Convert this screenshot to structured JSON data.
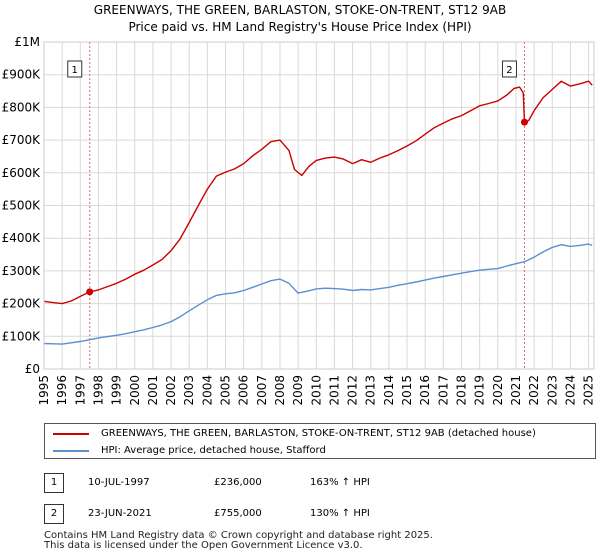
{
  "title_line1": "GREENWAYS, THE GREEN, BARLASTON, STOKE-ON-TRENT, ST12 9AB",
  "title_line2": "Price paid vs. HM Land Registry's House Price Index (HPI)",
  "colors": {
    "property": "#cc0000",
    "hpi": "#5b8fd0",
    "marker_line": "#e06a6a",
    "grid": "#d9d9d9"
  },
  "legend": {
    "property_label": "GREENWAYS, THE GREEN, BARLASTON, STOKE-ON-TRENT, ST12 9AB (detached house)",
    "hpi_label": "HPI: Average price, detached house, Stafford"
  },
  "annotations": [
    {
      "id": "1",
      "date": "10-JUL-1997",
      "price": "£236,000",
      "hpi_change": "163% ↑ HPI"
    },
    {
      "id": "2",
      "date": "23-JUN-2021",
      "price": "£755,000",
      "hpi_change": "130% ↑ HPI"
    }
  ],
  "footer": {
    "line1": "Contains HM Land Registry data © Crown copyright and database right 2025.",
    "line2": "This data is licensed under the Open Government Licence v3.0."
  },
  "chart_data": {
    "type": "line",
    "title": "GREENWAYS, THE GREEN, BARLASTON, STOKE-ON-TRENT, ST12 9AB — Price paid vs. HM Land Registry's House Price Index (HPI)",
    "xlabel": "",
    "ylabel": "",
    "xlim": [
      1995,
      2025.3
    ],
    "ylim": [
      0,
      1000000
    ],
    "y_ticks": [
      {
        "value": 0,
        "label": "£0"
      },
      {
        "value": 100000,
        "label": "£100K"
      },
      {
        "value": 200000,
        "label": "£200K"
      },
      {
        "value": 300000,
        "label": "£300K"
      },
      {
        "value": 400000,
        "label": "£400K"
      },
      {
        "value": 500000,
        "label": "£500K"
      },
      {
        "value": 600000,
        "label": "£600K"
      },
      {
        "value": 700000,
        "label": "£700K"
      },
      {
        "value": 800000,
        "label": "£800K"
      },
      {
        "value": 900000,
        "label": "£900K"
      },
      {
        "value": 1000000,
        "label": "£1M"
      }
    ],
    "x_ticks": [
      "1995",
      "1996",
      "1997",
      "1998",
      "1999",
      "2000",
      "2001",
      "2002",
      "2003",
      "2004",
      "2005",
      "2006",
      "2007",
      "2008",
      "2009",
      "2010",
      "2011",
      "2012",
      "2013",
      "2014",
      "2015",
      "2016",
      "2017",
      "2018",
      "2019",
      "2020",
      "2021",
      "2022",
      "2023",
      "2024",
      "2025"
    ],
    "grid": true,
    "series": [
      {
        "name": "GREENWAYS, THE GREEN, BARLASTON, STOKE-ON-TRENT, ST12 9AB (detached house)",
        "points": [
          [
            1995.0,
            207000
          ],
          [
            1995.5,
            203000
          ],
          [
            1996.0,
            200000
          ],
          [
            1996.5,
            208000
          ],
          [
            1997.0,
            222000
          ],
          [
            1997.52,
            236000
          ],
          [
            1998.0,
            242000
          ],
          [
            1998.5,
            252000
          ],
          [
            1999.0,
            262000
          ],
          [
            1999.5,
            275000
          ],
          [
            2000.0,
            290000
          ],
          [
            2000.5,
            302000
          ],
          [
            2001.0,
            318000
          ],
          [
            2001.5,
            335000
          ],
          [
            2002.0,
            362000
          ],
          [
            2002.5,
            398000
          ],
          [
            2003.0,
            448000
          ],
          [
            2003.5,
            500000
          ],
          [
            2004.0,
            550000
          ],
          [
            2004.5,
            590000
          ],
          [
            2005.0,
            602000
          ],
          [
            2005.5,
            612000
          ],
          [
            2006.0,
            628000
          ],
          [
            2006.5,
            652000
          ],
          [
            2007.0,
            672000
          ],
          [
            2007.5,
            695000
          ],
          [
            2008.0,
            700000
          ],
          [
            2008.5,
            668000
          ],
          [
            2008.8,
            610000
          ],
          [
            2009.2,
            592000
          ],
          [
            2009.6,
            620000
          ],
          [
            2010.0,
            638000
          ],
          [
            2010.5,
            645000
          ],
          [
            2011.0,
            648000
          ],
          [
            2011.5,
            642000
          ],
          [
            2012.0,
            628000
          ],
          [
            2012.5,
            640000
          ],
          [
            2013.0,
            632000
          ],
          [
            2013.5,
            645000
          ],
          [
            2014.0,
            655000
          ],
          [
            2014.5,
            668000
          ],
          [
            2015.0,
            682000
          ],
          [
            2015.5,
            698000
          ],
          [
            2016.0,
            718000
          ],
          [
            2016.5,
            738000
          ],
          [
            2017.0,
            752000
          ],
          [
            2017.5,
            765000
          ],
          [
            2018.0,
            775000
          ],
          [
            2018.5,
            790000
          ],
          [
            2019.0,
            805000
          ],
          [
            2019.5,
            812000
          ],
          [
            2020.0,
            820000
          ],
          [
            2020.5,
            838000
          ],
          [
            2020.9,
            858000
          ],
          [
            2021.2,
            862000
          ],
          [
            2021.4,
            845000
          ],
          [
            2021.47,
            755000
          ],
          [
            2021.7,
            760000
          ],
          [
            2022.0,
            790000
          ],
          [
            2022.5,
            830000
          ],
          [
            2023.0,
            855000
          ],
          [
            2023.5,
            880000
          ],
          [
            2024.0,
            865000
          ],
          [
            2024.5,
            872000
          ],
          [
            2025.0,
            880000
          ],
          [
            2025.2,
            868000
          ]
        ]
      },
      {
        "name": "HPI: Average price, detached house, Stafford",
        "points": [
          [
            1995.0,
            78000
          ],
          [
            1995.5,
            77000
          ],
          [
            1996.0,
            76000
          ],
          [
            1996.5,
            80000
          ],
          [
            1997.0,
            84000
          ],
          [
            1997.52,
            89700
          ],
          [
            1998.0,
            95000
          ],
          [
            1998.5,
            99000
          ],
          [
            1999.0,
            103000
          ],
          [
            1999.5,
            108000
          ],
          [
            2000.0,
            114000
          ],
          [
            2000.5,
            120000
          ],
          [
            2001.0,
            127000
          ],
          [
            2001.5,
            135000
          ],
          [
            2002.0,
            145000
          ],
          [
            2002.5,
            160000
          ],
          [
            2003.0,
            178000
          ],
          [
            2003.5,
            195000
          ],
          [
            2004.0,
            212000
          ],
          [
            2004.5,
            225000
          ],
          [
            2005.0,
            230000
          ],
          [
            2005.5,
            233000
          ],
          [
            2006.0,
            240000
          ],
          [
            2006.5,
            250000
          ],
          [
            2007.0,
            260000
          ],
          [
            2007.5,
            270000
          ],
          [
            2008.0,
            275000
          ],
          [
            2008.5,
            262000
          ],
          [
            2009.0,
            232000
          ],
          [
            2009.5,
            238000
          ],
          [
            2010.0,
            245000
          ],
          [
            2010.5,
            247000
          ],
          [
            2011.0,
            246000
          ],
          [
            2011.5,
            244000
          ],
          [
            2012.0,
            240000
          ],
          [
            2012.5,
            243000
          ],
          [
            2013.0,
            242000
          ],
          [
            2013.5,
            246000
          ],
          [
            2014.0,
            250000
          ],
          [
            2014.5,
            256000
          ],
          [
            2015.0,
            261000
          ],
          [
            2015.5,
            266000
          ],
          [
            2016.0,
            272000
          ],
          [
            2016.5,
            278000
          ],
          [
            2017.0,
            283000
          ],
          [
            2017.5,
            288000
          ],
          [
            2018.0,
            293000
          ],
          [
            2018.5,
            298000
          ],
          [
            2019.0,
            302000
          ],
          [
            2019.5,
            305000
          ],
          [
            2020.0,
            307000
          ],
          [
            2020.5,
            315000
          ],
          [
            2021.0,
            322000
          ],
          [
            2021.47,
            328000
          ],
          [
            2022.0,
            342000
          ],
          [
            2022.5,
            358000
          ],
          [
            2023.0,
            372000
          ],
          [
            2023.5,
            380000
          ],
          [
            2024.0,
            375000
          ],
          [
            2024.5,
            378000
          ],
          [
            2025.0,
            382000
          ],
          [
            2025.2,
            378000
          ]
        ]
      }
    ],
    "sales": [
      {
        "id": "1",
        "x": 1997.52,
        "value": 236000
      },
      {
        "id": "2",
        "x": 2021.47,
        "value": 755000
      }
    ]
  }
}
